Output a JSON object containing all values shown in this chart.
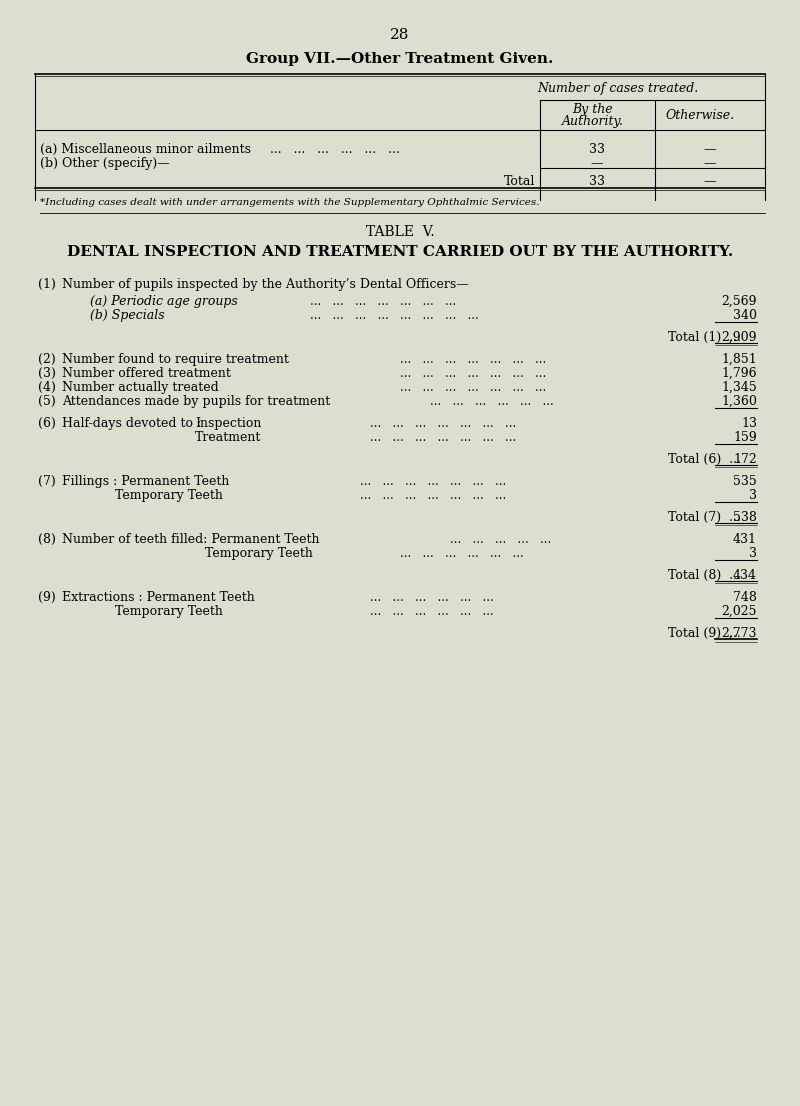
{
  "bg_color": "#deded0",
  "page_number": "28",
  "group7_title": "Group VII.—Other Treatment Given.",
  "group7_col1": "Number of cases treated.",
  "group7_col2": "By the\nAuthority.",
  "group7_col3": "Otherwise.",
  "group7_row1_label": "(a) Miscellaneous minor ailments",
  "group7_row1_dots": "...   ...   ...   ...   ...   ...",
  "group7_row1_val1": "33",
  "group7_row1_val2": "—",
  "group7_row2_label": "(b) Other (specify)—",
  "group7_row2_val1": "—",
  "group7_row2_val2": "—",
  "group7_total_label": "Total",
  "group7_total_val1": "33",
  "group7_total_val2": "—",
  "group7_footnote": "*Including cases dealt with under arrangements with the Supplementary Ophthalmic Services.",
  "table5_title": "TABLE  V.",
  "table5_heading": "DENTAL INSPECTION AND TREATMENT CARRIED OUT BY THE AUTHORITY.",
  "item1_label": "Number of pupils inspected by the Authority’s Dental Officers—",
  "item1a_label": "(a) Periodic age groups",
  "item1a_val": "2,569",
  "item1b_label": "(b) Specials",
  "item1b_val": "340",
  "item1_total": "2,909",
  "item2_label": "Number found to require treatment",
  "item2_val": "1,851",
  "item3_label": "Number offered treatment",
  "item3_val": "1,796",
  "item4_label": "Number actually treated",
  "item4_val": "1,345",
  "item5_label": "Attendances made by pupils for treatment",
  "item5_val": "1,360",
  "item6_label": "Half-days devoted to :",
  "item6a_label": "Inspection",
  "item6a_val": "13",
  "item6b_label": "Treatment",
  "item6b_val": "159",
  "item6_total": "172",
  "item7_label": "Fillings : Permanent Teeth",
  "item7a_label": "Temporary Teeth",
  "item7_val": "535",
  "item7a_val": "3",
  "item7_total": "538",
  "item8_label": "Number of teeth filled: Permanent Teeth",
  "item8a_label": "Temporary Teeth",
  "item8_val": "431",
  "item8a_val": "3",
  "item8_total": "434",
  "item9_label": "Extractions : Permanent Teeth",
  "item9a_label": "Temporary Teeth",
  "item9_val": "748",
  "item9a_val": "2,025",
  "item9_total": "2,773"
}
